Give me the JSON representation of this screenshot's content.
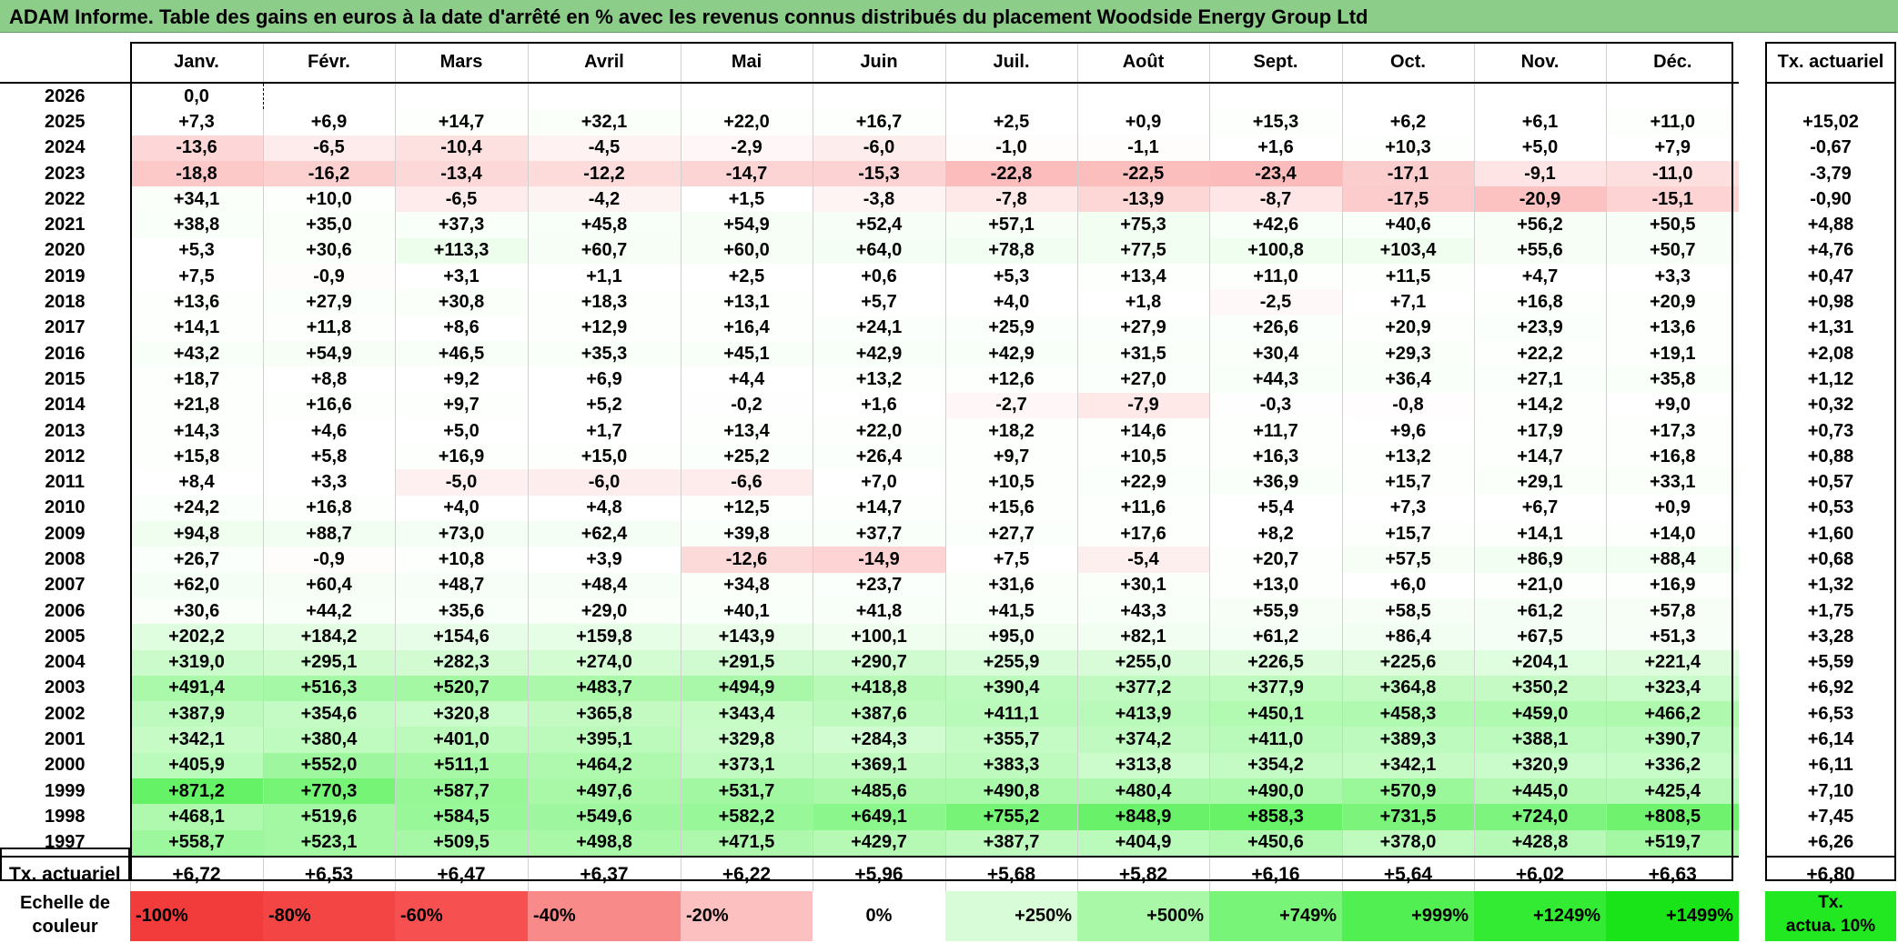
{
  "title": "ADAM Informe. Table des gains en euros à la date d'arrêté en % avec les revenus connus distribués du placement Woodside Energy Group Ltd",
  "months": [
    "Janv.",
    "Févr.",
    "Mars",
    "Avril",
    "Mai",
    "Juin",
    "Juil.",
    "Août",
    "Sept.",
    "Oct.",
    "Nov.",
    "Déc."
  ],
  "side_header": "Tx. actuariel",
  "rows": [
    {
      "year": "2026",
      "values": [
        "0,0",
        "",
        "",
        "",
        "",
        "",
        "",
        "",
        "",
        "",
        "",
        ""
      ],
      "rate": ""
    },
    {
      "year": "2025",
      "values": [
        "+7,3",
        "+6,9",
        "+14,7",
        "+32,1",
        "+22,0",
        "+16,7",
        "+2,5",
        "+0,9",
        "+15,3",
        "+6,2",
        "+6,1",
        "+11,0"
      ],
      "rate": "+15,02"
    },
    {
      "year": "2024",
      "values": [
        "-13,6",
        "-6,5",
        "-10,4",
        "-4,5",
        "-2,9",
        "-6,0",
        "-1,0",
        "-1,1",
        "+1,6",
        "+10,3",
        "+5,0",
        "+7,9"
      ],
      "rate": "-0,67"
    },
    {
      "year": "2023",
      "values": [
        "-18,8",
        "-16,2",
        "-13,4",
        "-12,2",
        "-14,7",
        "-15,3",
        "-22,8",
        "-22,5",
        "-23,4",
        "-17,1",
        "-9,1",
        "-11,0"
      ],
      "rate": "-3,79"
    },
    {
      "year": "2022",
      "values": [
        "+34,1",
        "+10,0",
        "-6,5",
        "-4,2",
        "+1,5",
        "-3,8",
        "-7,8",
        "-13,9",
        "-8,7",
        "-17,5",
        "-20,9",
        "-15,1"
      ],
      "rate": "-0,90"
    },
    {
      "year": "2021",
      "values": [
        "+38,8",
        "+35,0",
        "+37,3",
        "+45,8",
        "+54,9",
        "+52,4",
        "+57,1",
        "+75,3",
        "+42,6",
        "+40,6",
        "+56,2",
        "+50,5"
      ],
      "rate": "+4,88"
    },
    {
      "year": "2020",
      "values": [
        "+5,3",
        "+30,6",
        "+113,3",
        "+60,7",
        "+60,0",
        "+64,0",
        "+78,8",
        "+77,5",
        "+100,8",
        "+103,4",
        "+55,6",
        "+50,7"
      ],
      "rate": "+4,76"
    },
    {
      "year": "2019",
      "values": [
        "+7,5",
        "-0,9",
        "+3,1",
        "+1,1",
        "+2,5",
        "+0,6",
        "+5,3",
        "+13,4",
        "+11,0",
        "+11,5",
        "+4,7",
        "+3,3"
      ],
      "rate": "+0,47"
    },
    {
      "year": "2018",
      "values": [
        "+13,6",
        "+27,9",
        "+30,8",
        "+18,3",
        "+13,1",
        "+5,7",
        "+4,0",
        "+1,8",
        "-2,5",
        "+7,1",
        "+16,8",
        "+20,9"
      ],
      "rate": "+0,98"
    },
    {
      "year": "2017",
      "values": [
        "+14,1",
        "+11,8",
        "+8,6",
        "+12,9",
        "+16,4",
        "+24,1",
        "+25,9",
        "+27,9",
        "+26,6",
        "+20,9",
        "+23,9",
        "+13,6"
      ],
      "rate": "+1,31"
    },
    {
      "year": "2016",
      "values": [
        "+43,2",
        "+54,9",
        "+46,5",
        "+35,3",
        "+45,1",
        "+42,9",
        "+42,9",
        "+31,5",
        "+30,4",
        "+29,3",
        "+22,2",
        "+19,1"
      ],
      "rate": "+2,08"
    },
    {
      "year": "2015",
      "values": [
        "+18,7",
        "+8,8",
        "+9,2",
        "+6,9",
        "+4,4",
        "+13,2",
        "+12,6",
        "+27,0",
        "+44,3",
        "+36,4",
        "+27,1",
        "+35,8"
      ],
      "rate": "+1,12"
    },
    {
      "year": "2014",
      "values": [
        "+21,8",
        "+16,6",
        "+9,7",
        "+5,2",
        "-0,2",
        "+1,6",
        "-2,7",
        "-7,9",
        "-0,3",
        "-0,8",
        "+14,2",
        "+9,0"
      ],
      "rate": "+0,32"
    },
    {
      "year": "2013",
      "values": [
        "+14,3",
        "+4,6",
        "+5,0",
        "+1,7",
        "+13,4",
        "+22,0",
        "+18,2",
        "+14,6",
        "+11,7",
        "+9,6",
        "+17,9",
        "+17,3"
      ],
      "rate": "+0,73"
    },
    {
      "year": "2012",
      "values": [
        "+15,8",
        "+5,8",
        "+16,9",
        "+15,0",
        "+25,2",
        "+26,4",
        "+9,7",
        "+10,5",
        "+16,3",
        "+13,2",
        "+14,7",
        "+16,8"
      ],
      "rate": "+0,88"
    },
    {
      "year": "2011",
      "values": [
        "+8,4",
        "+3,3",
        "-5,0",
        "-6,0",
        "-6,6",
        "+7,0",
        "+10,5",
        "+22,9",
        "+36,9",
        "+15,7",
        "+29,1",
        "+33,1"
      ],
      "rate": "+0,57"
    },
    {
      "year": "2010",
      "values": [
        "+24,2",
        "+16,8",
        "+4,0",
        "+4,8",
        "+12,5",
        "+14,7",
        "+15,6",
        "+11,6",
        "+5,4",
        "+7,3",
        "+6,7",
        "+0,9"
      ],
      "rate": "+0,53"
    },
    {
      "year": "2009",
      "values": [
        "+94,8",
        "+88,7",
        "+73,0",
        "+62,4",
        "+39,8",
        "+37,7",
        "+27,7",
        "+17,6",
        "+8,2",
        "+15,7",
        "+14,1",
        "+14,0"
      ],
      "rate": "+1,60"
    },
    {
      "year": "2008",
      "values": [
        "+26,7",
        "-0,9",
        "+10,8",
        "+3,9",
        "-12,6",
        "-14,9",
        "+7,5",
        "-5,4",
        "+20,7",
        "+57,5",
        "+86,9",
        "+88,4"
      ],
      "rate": "+0,68"
    },
    {
      "year": "2007",
      "values": [
        "+62,0",
        "+60,4",
        "+48,7",
        "+48,4",
        "+34,8",
        "+23,7",
        "+31,6",
        "+30,1",
        "+13,0",
        "+6,0",
        "+21,0",
        "+16,9"
      ],
      "rate": "+1,32"
    },
    {
      "year": "2006",
      "values": [
        "+30,6",
        "+44,2",
        "+35,6",
        "+29,0",
        "+40,1",
        "+41,8",
        "+41,5",
        "+43,3",
        "+55,9",
        "+58,5",
        "+61,2",
        "+57,8"
      ],
      "rate": "+1,75"
    },
    {
      "year": "2005",
      "values": [
        "+202,2",
        "+184,2",
        "+154,6",
        "+159,8",
        "+143,9",
        "+100,1",
        "+95,0",
        "+82,1",
        "+61,2",
        "+86,4",
        "+67,5",
        "+51,3"
      ],
      "rate": "+3,28"
    },
    {
      "year": "2004",
      "values": [
        "+319,0",
        "+295,1",
        "+282,3",
        "+274,0",
        "+291,5",
        "+290,7",
        "+255,9",
        "+255,0",
        "+226,5",
        "+225,6",
        "+204,1",
        "+221,4"
      ],
      "rate": "+5,59"
    },
    {
      "year": "2003",
      "values": [
        "+491,4",
        "+516,3",
        "+520,7",
        "+483,7",
        "+494,9",
        "+418,8",
        "+390,4",
        "+377,2",
        "+377,9",
        "+364,8",
        "+350,2",
        "+323,4"
      ],
      "rate": "+6,92"
    },
    {
      "year": "2002",
      "values": [
        "+387,9",
        "+354,6",
        "+320,8",
        "+365,8",
        "+343,4",
        "+387,6",
        "+411,1",
        "+413,9",
        "+450,1",
        "+458,3",
        "+459,0",
        "+466,2"
      ],
      "rate": "+6,53"
    },
    {
      "year": "2001",
      "values": [
        "+342,1",
        "+380,4",
        "+401,0",
        "+395,1",
        "+329,8",
        "+284,3",
        "+355,7",
        "+374,2",
        "+411,0",
        "+389,3",
        "+388,1",
        "+390,7"
      ],
      "rate": "+6,14"
    },
    {
      "year": "2000",
      "values": [
        "+405,9",
        "+552,0",
        "+511,1",
        "+464,2",
        "+373,1",
        "+369,1",
        "+383,3",
        "+313,8",
        "+354,2",
        "+342,1",
        "+320,9",
        "+336,2"
      ],
      "rate": "+6,11"
    },
    {
      "year": "1999",
      "values": [
        "+871,2",
        "+770,3",
        "+587,7",
        "+497,6",
        "+531,7",
        "+485,6",
        "+490,8",
        "+480,4",
        "+490,0",
        "+570,9",
        "+445,0",
        "+425,4"
      ],
      "rate": "+7,10"
    },
    {
      "year": "1998",
      "values": [
        "+468,1",
        "+519,6",
        "+584,5",
        "+549,6",
        "+582,2",
        "+649,1",
        "+755,2",
        "+848,9",
        "+858,3",
        "+731,5",
        "+724,0",
        "+808,5"
      ],
      "rate": "+7,45"
    },
    {
      "year": "1997",
      "values": [
        "+558,7",
        "+523,1",
        "+509,5",
        "+498,8",
        "+471,5",
        "+429,7",
        "+387,7",
        "+404,9",
        "+450,6",
        "+378,0",
        "+428,8",
        "+519,7"
      ],
      "rate": "+6,26"
    }
  ],
  "total": {
    "label": "Tx. actuariel",
    "values": [
      "+6,72",
      "+6,53",
      "+6,47",
      "+6,37",
      "+6,22",
      "+5,96",
      "+5,68",
      "+5,82",
      "+6,16",
      "+5,64",
      "+6,02",
      "+6,63"
    ],
    "rate": "+6,80"
  },
  "scale": {
    "label_line1": "Echelle de",
    "label_line2": "couleur",
    "items": [
      {
        "label": "-100%",
        "color": "#f23c3c",
        "align": "left"
      },
      {
        "label": "-80%",
        "color": "#f44545",
        "align": "left"
      },
      {
        "label": "-60%",
        "color": "#f75050",
        "align": "left"
      },
      {
        "label": "-40%",
        "color": "#f98a8a",
        "align": "left"
      },
      {
        "label": "-20%",
        "color": "#fcc0c0",
        "align": "left"
      },
      {
        "label": "0%",
        "color": "#ffffff",
        "align": "center"
      },
      {
        "label": "+250%",
        "color": "#d8fcd8",
        "align": "right"
      },
      {
        "label": "+500%",
        "color": "#a8f8a8",
        "align": "right"
      },
      {
        "label": "+749%",
        "color": "#78f478",
        "align": "right"
      },
      {
        "label": "+999%",
        "color": "#52ef52",
        "align": "right"
      },
      {
        "label": "+1249%",
        "color": "#34eb34",
        "align": "right"
      },
      {
        "label": "+1499%",
        "color": "#18e418",
        "align": "right"
      }
    ],
    "legend_line1": "Tx.",
    "legend_line2": "actua. 10%"
  }
}
